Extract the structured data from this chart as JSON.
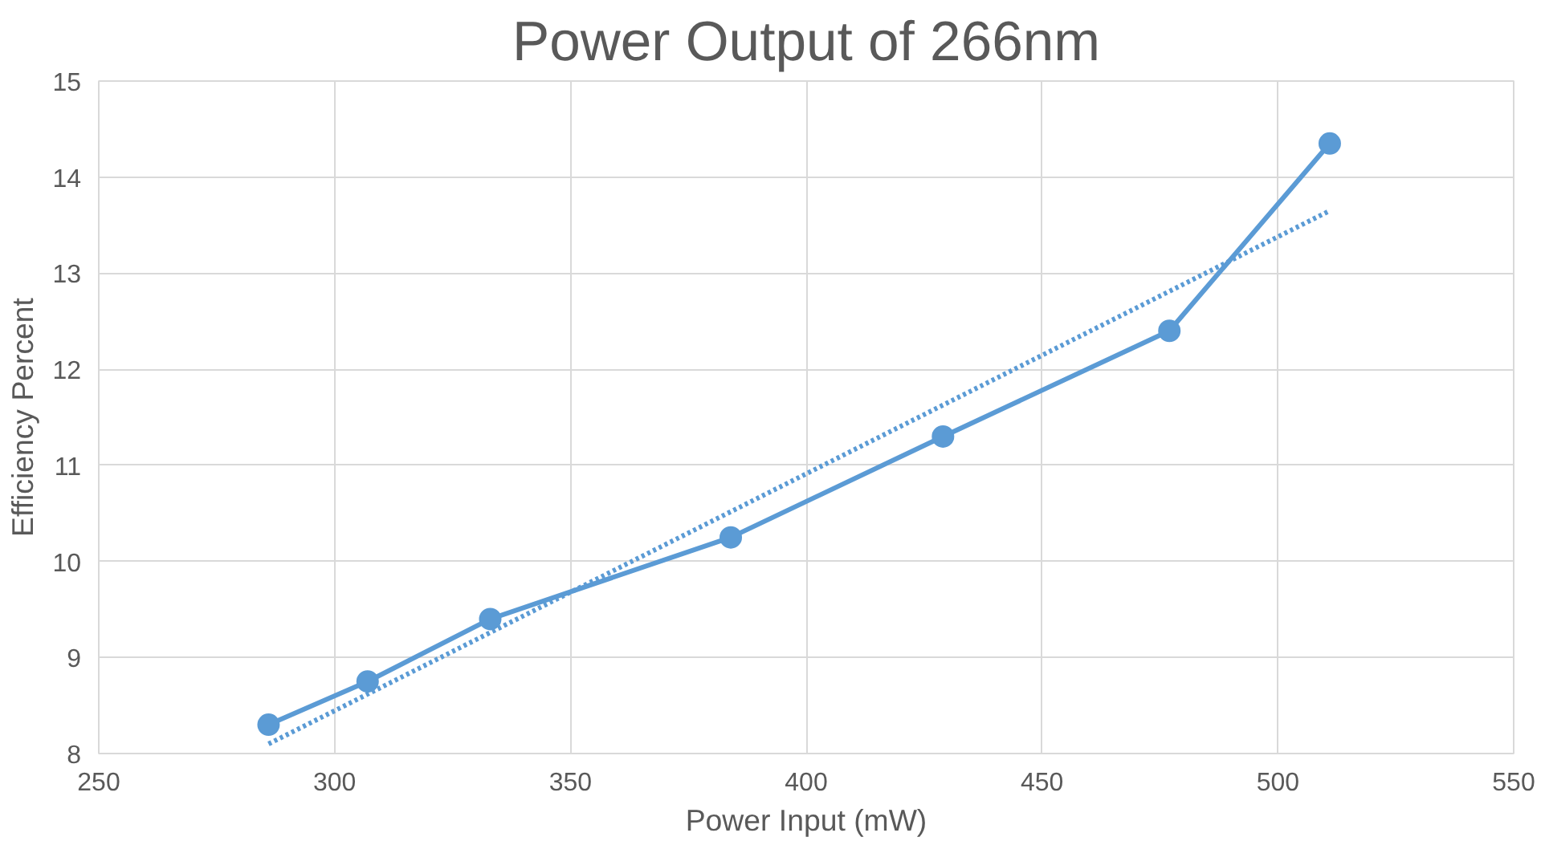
{
  "chart_data": {
    "type": "line",
    "title": "Power Output of 266nm",
    "xlabel": "Power Input (mW)",
    "ylabel": "Efficiency Percent",
    "xlim": [
      250,
      550
    ],
    "xticks": [
      250,
      300,
      350,
      400,
      450,
      500,
      550
    ],
    "ylim": [
      8,
      15
    ],
    "yticks": [
      8,
      9,
      10,
      11,
      12,
      13,
      14,
      15
    ],
    "grid": true,
    "series": [
      {
        "color": "#5b9bd5",
        "x": [
          286,
          307,
          333,
          384,
          429,
          477,
          511
        ],
        "values": [
          8.3,
          8.75,
          9.4,
          10.25,
          11.3,
          12.4,
          14.35
        ],
        "marker": "circle",
        "line_style": "solid"
      },
      {
        "type": "line",
        "color": "#5b9bd5",
        "x": [
          286,
          511
        ],
        "values": [
          8.1,
          13.65
        ],
        "marker": "none",
        "line_style": "dotted"
      }
    ]
  }
}
